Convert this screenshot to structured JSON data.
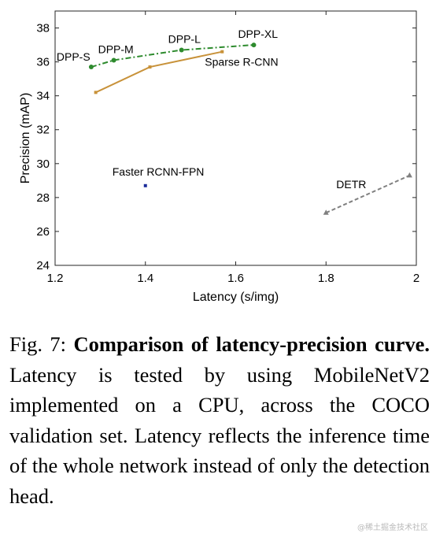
{
  "chart_data": {
    "type": "line",
    "xlabel": "Latency (s/img)",
    "ylabel": "Precision (mAP)",
    "xlim": [
      1.2,
      2.0
    ],
    "ylim": [
      24,
      39
    ],
    "xticks": [
      "1.2",
      "1.4",
      "1.6",
      "1.8",
      "2"
    ],
    "yticks": [
      "24",
      "26",
      "28",
      "30",
      "32",
      "34",
      "36",
      "38"
    ],
    "grid": false,
    "series": [
      {
        "name": "DPP",
        "color": "#2e8b2e",
        "style": "dash-dot",
        "marker": "circle",
        "x": [
          1.28,
          1.33,
          1.48,
          1.64
        ],
        "y": [
          35.7,
          36.1,
          36.7,
          37.0
        ],
        "labels": [
          "DPP-S",
          "DPP-M",
          "DPP-L",
          "DPP-XL"
        ]
      },
      {
        "name": "Sparse R-CNN",
        "color": "#c8923a",
        "style": "solid",
        "marker": "square",
        "x": [
          1.29,
          1.41,
          1.57
        ],
        "y": [
          34.2,
          35.7,
          36.6
        ],
        "labels": [
          "Sparse R-CNN"
        ]
      },
      {
        "name": "Faster RCNN-FPN",
        "color": "#1a2b9a",
        "style": "none",
        "marker": "square",
        "x": [
          1.4
        ],
        "y": [
          28.7
        ],
        "labels": [
          "Faster RCNN-FPN"
        ]
      },
      {
        "name": "DETR",
        "color": "#808080",
        "style": "dashed",
        "marker": "triangle",
        "x": [
          1.8,
          1.985
        ],
        "y": [
          27.1,
          29.3
        ],
        "labels": [
          "DETR"
        ]
      }
    ]
  },
  "caption": {
    "prefix": "Fig. 7:",
    "bold": "Comparison of latency-precision curve.",
    "text": "Latency is tested by using MobileNetV2 implemented on a CPU, across the COCO validation set. Latency reflects the inference time of the whole network instead of only the detection head."
  },
  "watermark": "@稀土掘金技术社区"
}
